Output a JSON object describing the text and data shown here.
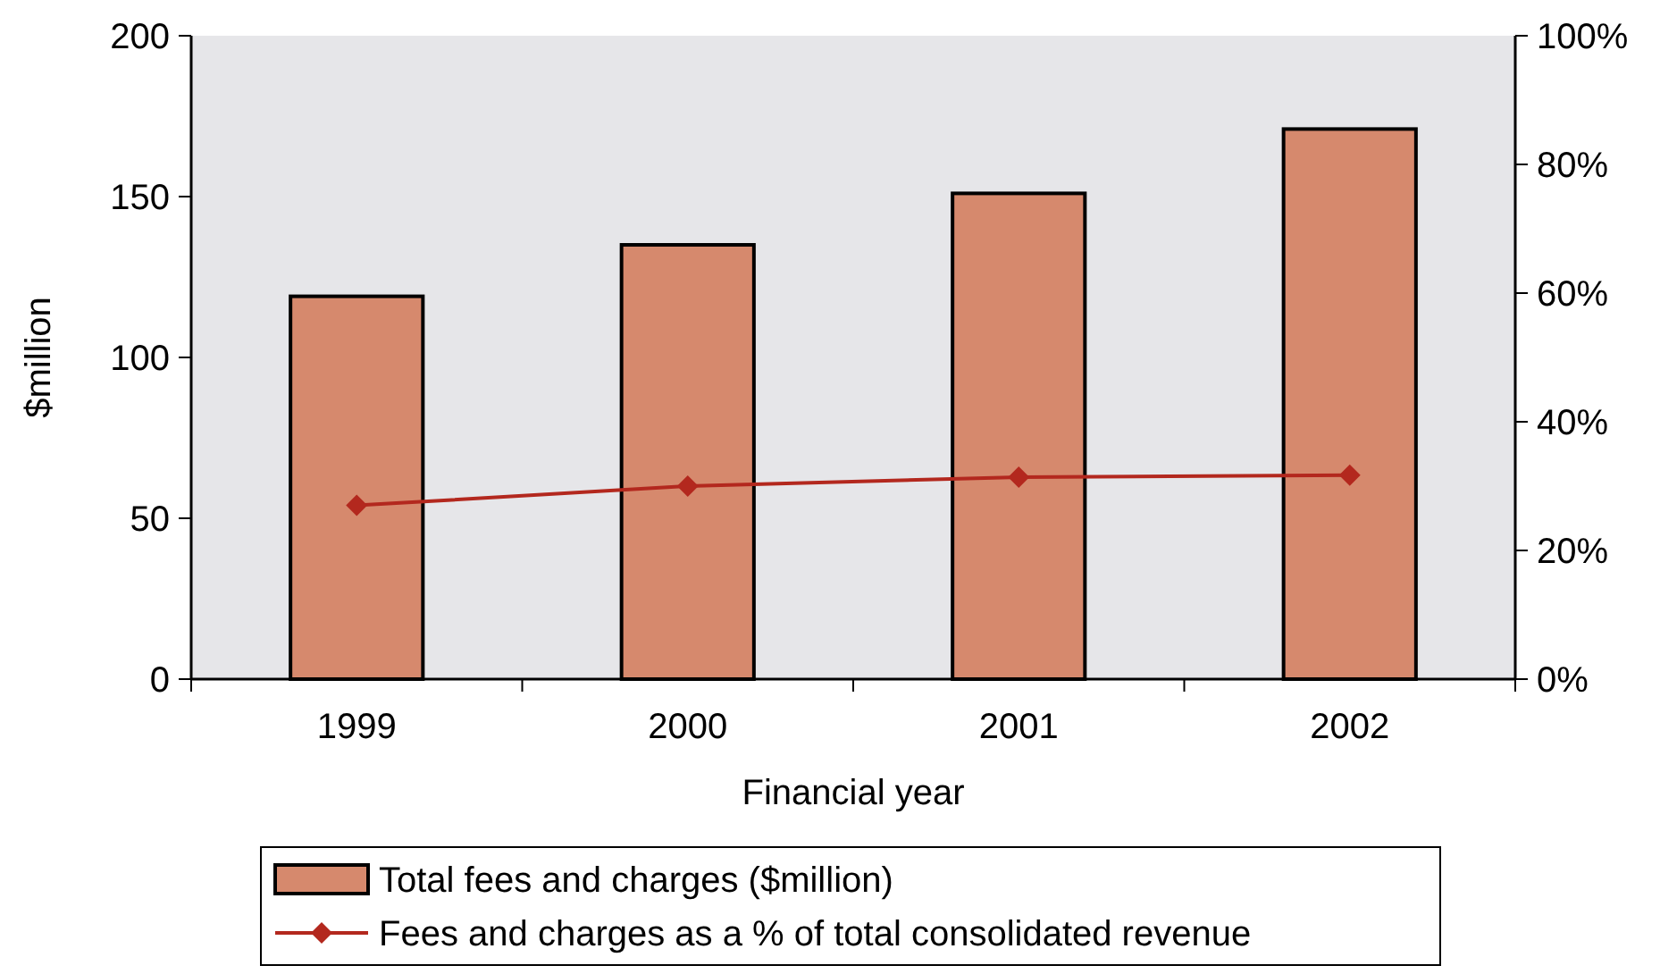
{
  "chart_data": {
    "type": "bar",
    "xlabel": "Financial year",
    "ylabel": "$million",
    "categories": [
      "1999",
      "2000",
      "2001",
      "2002"
    ],
    "series": [
      {
        "name": "Total fees and charges ($million)",
        "color": "#d6896d",
        "values": [
          119,
          135,
          151,
          171
        ]
      },
      {
        "name": "Fees and charges as a % of total consolidated revenue",
        "type": "line",
        "axis": "y2",
        "color": "#b3281e",
        "values": [
          27,
          30,
          31.4,
          31.7
        ]
      }
    ],
    "ylim": [
      0,
      200
    ],
    "yticks": [
      0,
      50,
      100,
      150,
      200
    ],
    "y2lim": [
      0,
      100
    ],
    "y2ticks": [
      {
        "value": 0,
        "label": "0%"
      },
      {
        "value": 20,
        "label": "20%"
      },
      {
        "value": 40,
        "label": "40%"
      },
      {
        "value": 60,
        "label": "60%"
      },
      {
        "value": 80,
        "label": "80%"
      },
      {
        "value": 100,
        "label": "100%"
      }
    ],
    "legend": "bottom",
    "marker": "diamond",
    "line_style": "solid",
    "grid": false
  }
}
